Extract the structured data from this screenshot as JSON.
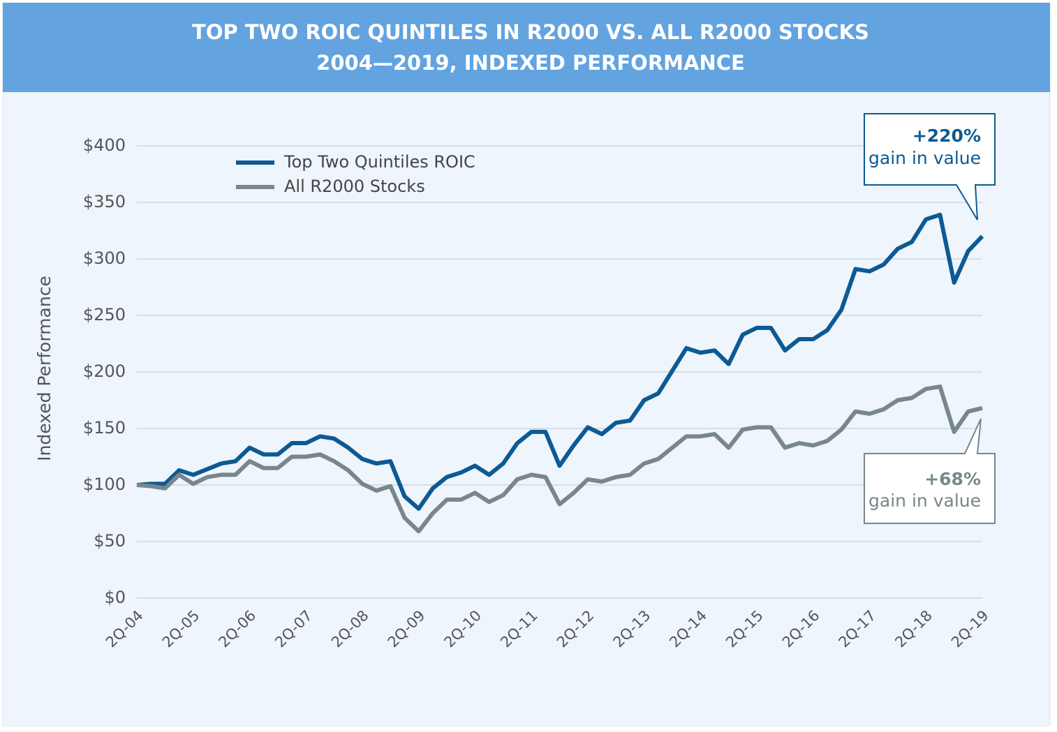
{
  "chart_data": {
    "type": "line",
    "title": [
      "TOP TWO ROIC QUINTILES IN R2000 VS. ALL R2000 STOCKS",
      "2004—2019, INDEXED PERFORMANCE"
    ],
    "y_label": "Indexed Performance",
    "categories": [
      "2Q-04",
      null,
      null,
      null,
      "2Q-05",
      null,
      null,
      null,
      "2Q-06",
      null,
      null,
      null,
      "2Q-07",
      null,
      null,
      null,
      "2Q-08",
      null,
      null,
      null,
      "2Q-09",
      null,
      null,
      null,
      "2Q-10",
      null,
      null,
      null,
      "2Q-11",
      null,
      null,
      null,
      "2Q-12",
      null,
      null,
      null,
      "2Q-13",
      null,
      null,
      null,
      "2Q-14",
      null,
      null,
      null,
      "2Q-15",
      null,
      null,
      null,
      "2Q-16",
      null,
      null,
      null,
      "2Q-17",
      null,
      null,
      null,
      "2Q-18",
      null,
      null,
      null,
      "2Q-19"
    ],
    "series": [
      {
        "name": "Top Two Quintiles ROIC",
        "color": "#0d5a92",
        "values": [
          100,
          101,
          101,
          113,
          109,
          114,
          119,
          121,
          133,
          127,
          127,
          137,
          137,
          143,
          141,
          133,
          123,
          119,
          121,
          90,
          79,
          97,
          107,
          111,
          117,
          109,
          119,
          137,
          147,
          147,
          117,
          135,
          151,
          145,
          155,
          157,
          175,
          181,
          201,
          221,
          217,
          219,
          207,
          233,
          239,
          239,
          219,
          229,
          229,
          237,
          255,
          291,
          289,
          295,
          309,
          315,
          335,
          339,
          279,
          307,
          320
        ]
      },
      {
        "name": "All R2000 Stocks",
        "color": "#77878b",
        "values": [
          100,
          99,
          97,
          109,
          101,
          107,
          109,
          109,
          121,
          115,
          115,
          125,
          125,
          127,
          121,
          113,
          101,
          95,
          99,
          71,
          59,
          75,
          87,
          87,
          93,
          85,
          91,
          105,
          109,
          107,
          83,
          93,
          105,
          103,
          107,
          109,
          119,
          123,
          133,
          143,
          143,
          145,
          133,
          149,
          151,
          151,
          133,
          137,
          135,
          139,
          149,
          165,
          163,
          167,
          175,
          177,
          185,
          187,
          147,
          165,
          168
        ]
      }
    ],
    "ylim": [
      0,
      400
    ],
    "yticks": [
      {
        "value": 0,
        "label": "$0"
      },
      {
        "value": 50,
        "label": "$50"
      },
      {
        "value": 100,
        "label": "$100"
      },
      {
        "value": 150,
        "label": "$150"
      },
      {
        "value": 200,
        "label": "$200"
      },
      {
        "value": 250,
        "label": "$250"
      },
      {
        "value": 300,
        "label": "$300"
      },
      {
        "value": 350,
        "label": "$350"
      },
      {
        "value": 400,
        "label": "$400"
      }
    ],
    "grid": true,
    "annotations": [
      {
        "value": "+220%",
        "text": "gain in value"
      },
      {
        "value": "+68%",
        "text": "gain in value"
      }
    ]
  }
}
